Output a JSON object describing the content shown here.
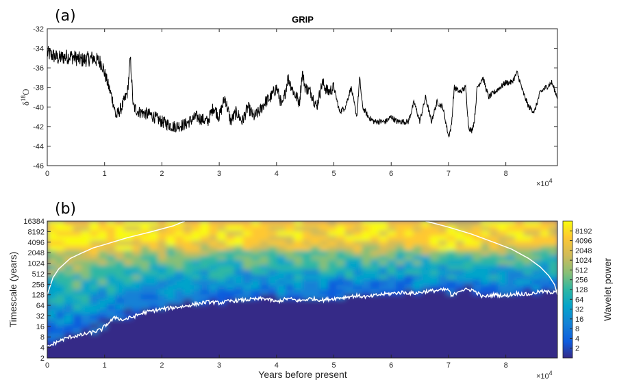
{
  "panel_a": {
    "label": "(a)",
    "title": "GRIP",
    "ylabel_main": "δ",
    "ylabel_sup": "18",
    "ylabel_tail": "O",
    "exp_base": "×10",
    "exp_power": "4"
  },
  "panel_b": {
    "label": "(b)",
    "xlabel": "Years before present",
    "ylabel": "Timescale (years)",
    "colorbar_label": "Wavelet power",
    "exp_base": "×10",
    "exp_power": "4"
  },
  "chart_data": [
    {
      "type": "line",
      "title": "GRIP",
      "xlabel": "",
      "ylabel": "δ18O",
      "xlim": [
        0,
        89000
      ],
      "ylim": [
        -46,
        -32
      ],
      "x_ticks": [
        0,
        10000,
        20000,
        30000,
        40000,
        50000,
        60000,
        70000,
        80000
      ],
      "x_tick_labels": [
        "0",
        "1",
        "2",
        "3",
        "4",
        "5",
        "6",
        "7",
        "8"
      ],
      "y_ticks": [
        -46,
        -44,
        -42,
        -40,
        -38,
        -36,
        -34,
        -32
      ],
      "y_tick_labels": [
        "-46",
        "-44",
        "-42",
        "-40",
        "-38",
        "-36",
        "-34",
        "-32"
      ],
      "x_multiplier": "×10^4",
      "grid": false,
      "series": [
        {
          "x": [
            0,
            2000,
            4000,
            6000,
            8000,
            9500,
            10500,
            11500,
            12000,
            13000,
            14000,
            14500,
            15000,
            16000,
            18000,
            20000,
            22000,
            24000,
            26000,
            28000,
            29000,
            30000,
            31000,
            32000,
            33000,
            34000,
            35000,
            36000,
            37000,
            38000,
            39000,
            40000,
            41000,
            42000,
            43000,
            44000,
            44500,
            45000,
            46000,
            47000,
            48000,
            49000,
            50000,
            51000,
            52000,
            53000,
            54000,
            54500,
            55000,
            56000,
            57000,
            58000,
            59000,
            60000,
            61000,
            62000,
            63000,
            64000,
            65000,
            66000,
            67000,
            68000,
            69000,
            70000,
            70500,
            71000,
            72000,
            73000,
            73500,
            74000,
            74500,
            75000,
            76000,
            77000,
            78000,
            79000,
            80000,
            81000,
            82000,
            83000,
            84000,
            85000,
            86000,
            87000,
            88000,
            89000
          ],
          "y": [
            -34.5,
            -35.0,
            -34.8,
            -35.2,
            -35.0,
            -35.5,
            -37.5,
            -39.5,
            -41.0,
            -40.0,
            -38.5,
            -35.0,
            -40.0,
            -40.5,
            -40.8,
            -41.5,
            -42.0,
            -41.8,
            -41.0,
            -41.5,
            -40.0,
            -41.0,
            -39.0,
            -41.5,
            -40.5,
            -41.5,
            -40.0,
            -41.0,
            -40.5,
            -39.5,
            -39.0,
            -38.0,
            -40.0,
            -37.0,
            -38.5,
            -39.5,
            -36.5,
            -38.0,
            -38.5,
            -40.0,
            -37.5,
            -38.5,
            -38.0,
            -40.5,
            -40.0,
            -38.0,
            -41.0,
            -37.0,
            -40.0,
            -41.0,
            -41.5,
            -41.5,
            -41.5,
            -41.0,
            -41.5,
            -41.5,
            -41.5,
            -39.5,
            -41.5,
            -39.0,
            -41.5,
            -39.5,
            -40.0,
            -43.0,
            -42.0,
            -38.0,
            -38.5,
            -38.0,
            -42.0,
            -42.5,
            -41.5,
            -38.0,
            -37.0,
            -39.0,
            -38.5,
            -38.0,
            -37.5,
            -37.5,
            -36.5,
            -38.5,
            -40.0,
            -40.5,
            -38.5,
            -38.0,
            -37.5,
            -39.0
          ]
        }
      ]
    },
    {
      "type": "heatmap",
      "title": "",
      "xlabel": "Years before present",
      "ylabel": "Timescale (years)",
      "xlim": [
        0,
        89000
      ],
      "y_scale": "log2",
      "ylim": [
        2,
        16384
      ],
      "x_ticks": [
        0,
        10000,
        20000,
        30000,
        40000,
        50000,
        60000,
        70000,
        80000
      ],
      "x_tick_labels": [
        "0",
        "1",
        "2",
        "3",
        "4",
        "5",
        "6",
        "7",
        "8"
      ],
      "y_tick_labels": [
        "2",
        "4",
        "8",
        "16",
        "32",
        "64",
        "128",
        "256",
        "512",
        "1024",
        "2048",
        "4096",
        "8192",
        "16384"
      ],
      "x_multiplier": "×10^4",
      "colorbar": {
        "label": "Wavelet power",
        "scale": "log2",
        "tick_labels": [
          "2",
          "4",
          "8",
          "16",
          "32",
          "64",
          "128",
          "256",
          "512",
          "1024",
          "2048",
          "4096",
          "8192"
        ],
        "colormap": "parula"
      },
      "series": [
        {
          "name": "cone_of_influence",
          "x": [
            0,
            1000,
            2000,
            4000,
            6000,
            8000,
            10000,
            14000,
            18000,
            22000,
            24000
          ],
          "y": [
            128,
            400,
            700,
            1400,
            2000,
            2800,
            3500,
            5500,
            8000,
            12000,
            16384
          ]
        },
        {
          "name": "cone_of_influence_right",
          "x": [
            66000,
            70000,
            74000,
            78000,
            81000,
            84000,
            86000,
            87500,
            88500,
            89000
          ],
          "y": [
            16384,
            11000,
            7000,
            4000,
            2600,
            1400,
            800,
            450,
            250,
            128
          ]
        },
        {
          "name": "significance_contour",
          "x": [
            0,
            2000,
            4000,
            6000,
            8000,
            9500,
            11000,
            12000,
            13000,
            15000,
            17000,
            20000,
            22000,
            24000,
            26000,
            28000,
            30000,
            32000,
            34000,
            36000,
            38000,
            40000,
            42000,
            44000,
            46000,
            48000,
            50000,
            52000,
            54000,
            56000,
            58000,
            60000,
            62000,
            64000,
            66000,
            68000,
            70000,
            70500,
            72000,
            74000,
            76000,
            78000,
            80000,
            82000,
            84000,
            86000,
            88000,
            89000
          ],
          "y": [
            4,
            6,
            8,
            9,
            11,
            13,
            22,
            30,
            24,
            30,
            40,
            50,
            55,
            60,
            70,
            80,
            75,
            85,
            90,
            95,
            100,
            80,
            100,
            85,
            100,
            90,
            100,
            110,
            120,
            110,
            130,
            140,
            150,
            140,
            160,
            170,
            180,
            110,
            175,
            180,
            110,
            130,
            120,
            140,
            130,
            160,
            150,
            180
          ]
        }
      ]
    }
  ]
}
